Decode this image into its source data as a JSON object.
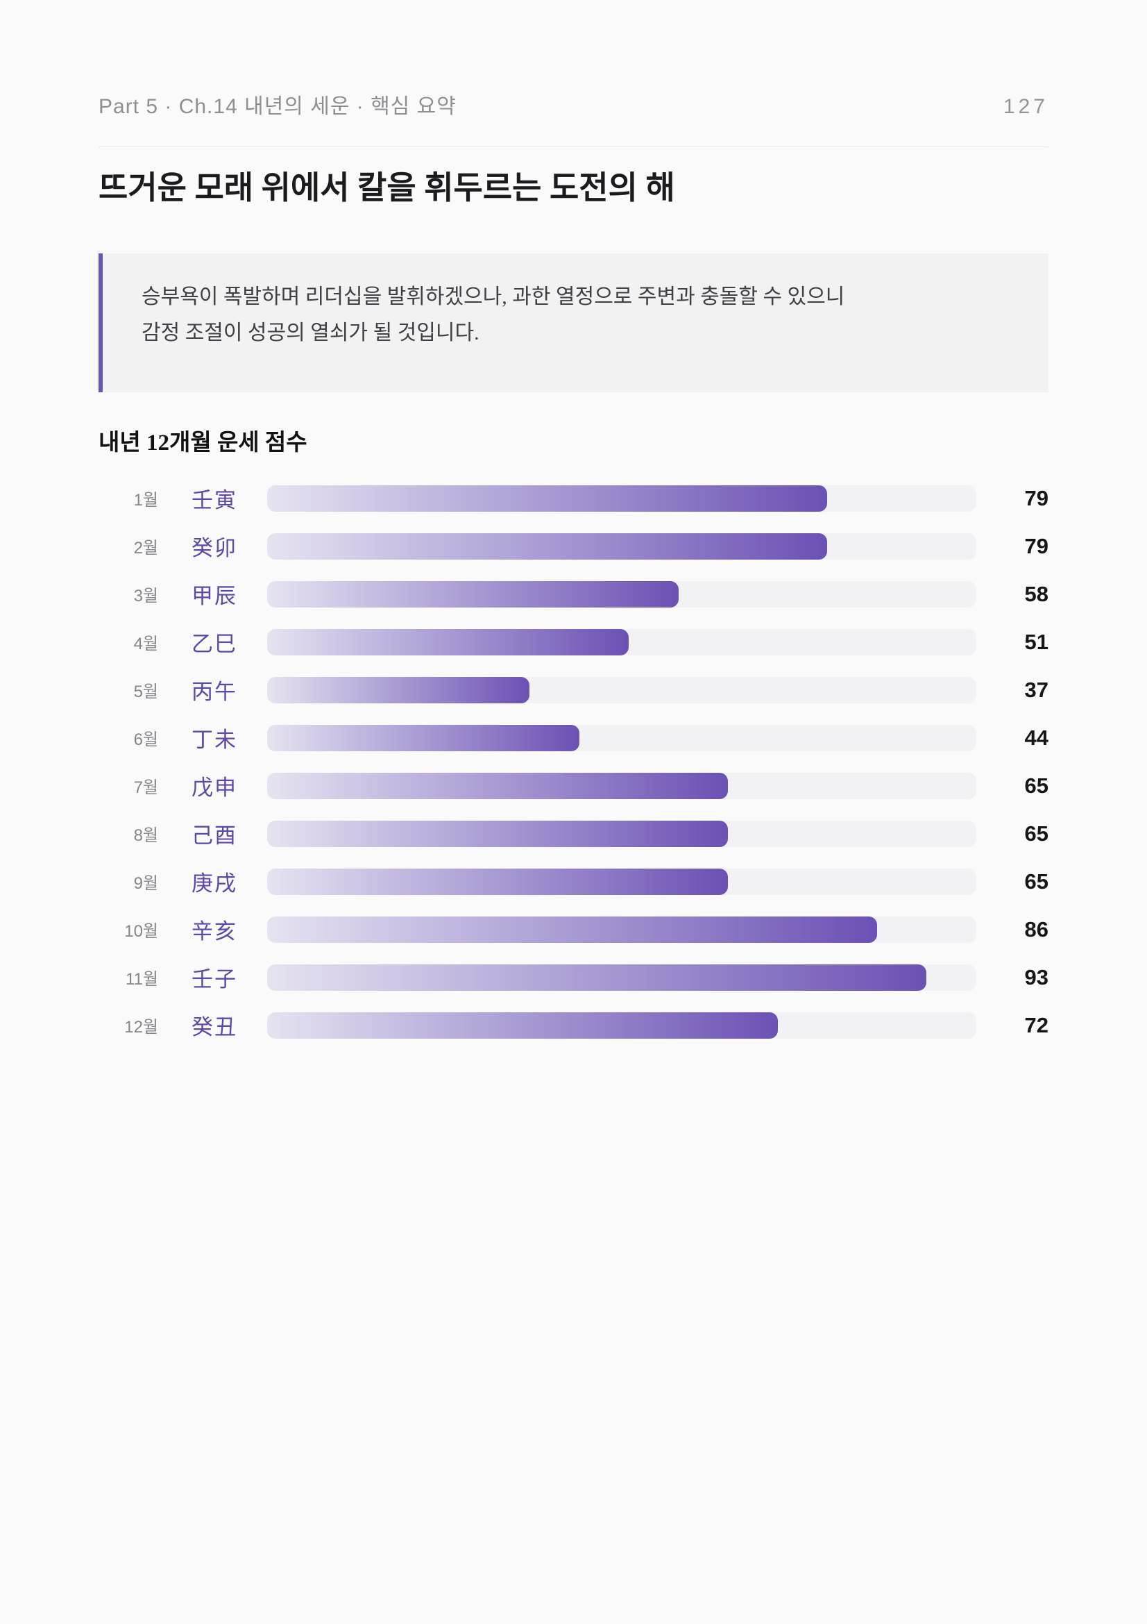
{
  "header": {
    "breadcrumb": "Part 5 · Ch.14 내년의 세운 · 핵심 요약",
    "page_number": "127"
  },
  "title": "뜨거운 모래 위에서 칼을 휘두르는 도전의 해",
  "callout": {
    "line1": "승부욕이 폭발하며 리더십을 발휘하겠으나, 과한 열정으로 주변과 충돌할 수 있으니",
    "line2": "감정 조절이 성공의 열쇠가 될 것입니다.",
    "accent_color": "#6556b4",
    "background": "#f2f2f3"
  },
  "chart_data": {
    "type": "bar",
    "orientation": "horizontal",
    "title": "내년 12개월 운세 점수",
    "xlim": [
      0,
      100
    ],
    "categories": [
      "1월",
      "2월",
      "3월",
      "4월",
      "5월",
      "6월",
      "7월",
      "8월",
      "9월",
      "10월",
      "11월",
      "12월"
    ],
    "ganzhi": [
      "壬寅",
      "癸卯",
      "甲辰",
      "乙巳",
      "丙午",
      "丁未",
      "戊申",
      "己酉",
      "庚戌",
      "辛亥",
      "壬子",
      "癸丑"
    ],
    "values": [
      79,
      79,
      58,
      51,
      37,
      44,
      65,
      65,
      65,
      86,
      93,
      72
    ],
    "bar_gradient_start": "#e6e3f1",
    "bar_gradient_end": "#6b51b4",
    "track_color": "#f2f2f4",
    "legend": "none",
    "grid": "off"
  }
}
